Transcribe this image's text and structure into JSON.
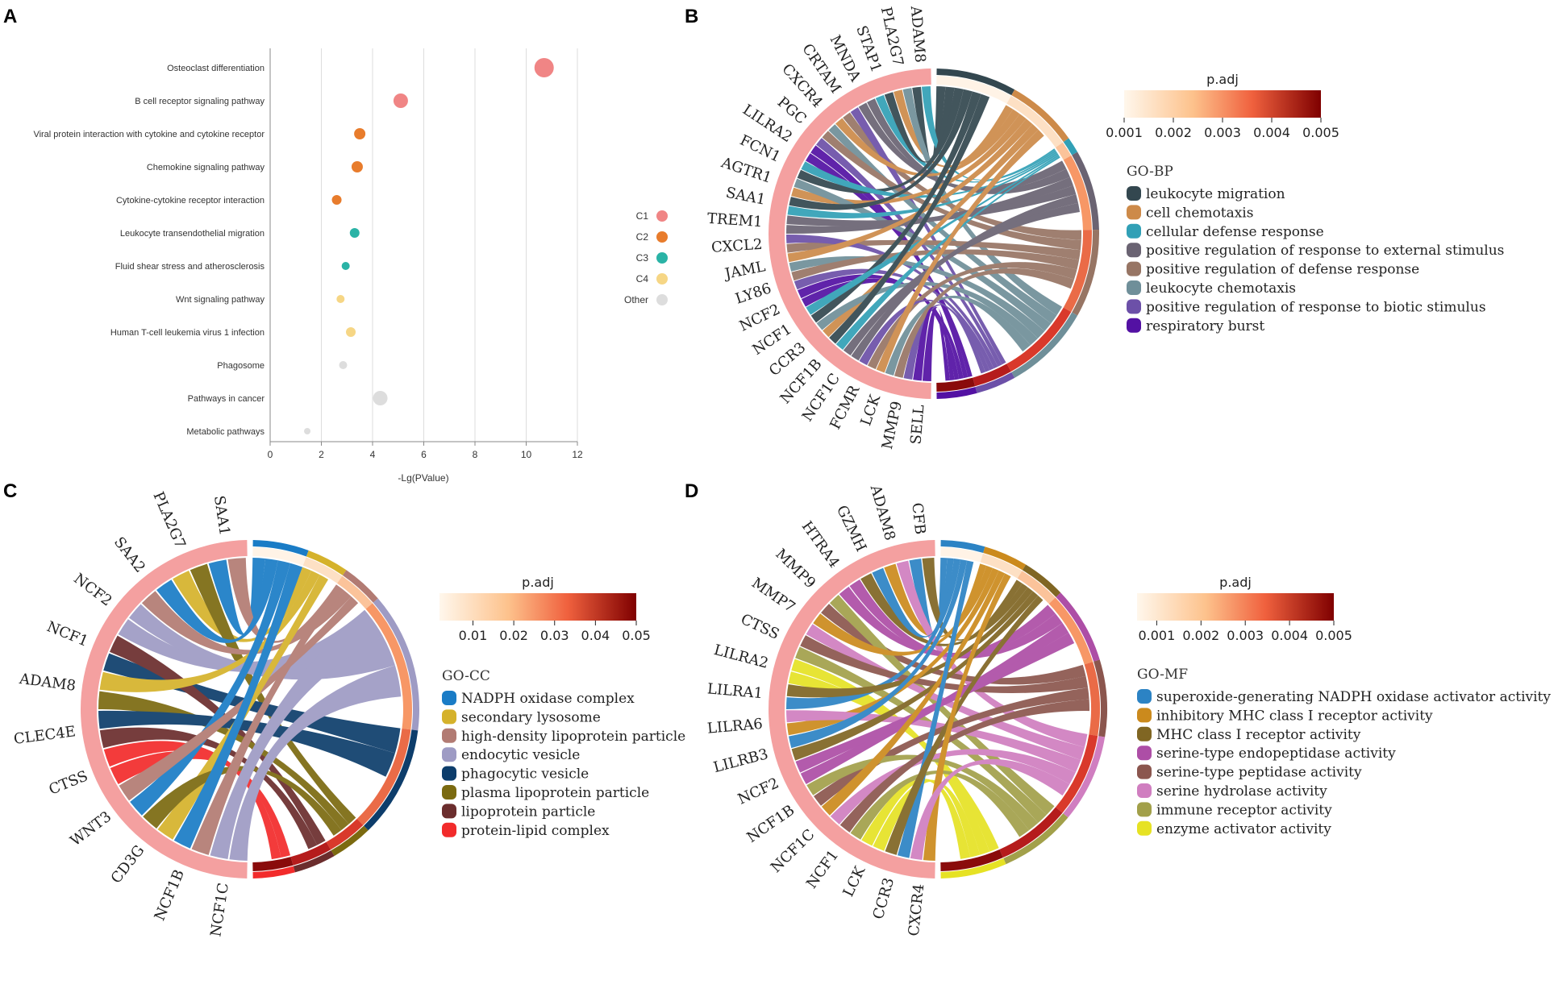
{
  "panels": {
    "A": {
      "letter": "A"
    },
    "B": {
      "letter": "B"
    },
    "C": {
      "letter": "C"
    },
    "D": {
      "letter": "D"
    }
  },
  "chart_data": [
    {
      "id": "A",
      "type": "scatter",
      "title": "",
      "xlabel": "-Lg(PValue)",
      "ylabel": "",
      "xlim": [
        0,
        12
      ],
      "xticks": [
        "0",
        "2",
        "4",
        "6",
        "8",
        "10",
        "12"
      ],
      "grid": true,
      "categories": [
        "Osteoclast differentiation",
        "B cell receptor signaling pathway",
        "Viral protein interaction with cytokine and cytokine receptor",
        "Chemokine signaling pathway",
        "Cytokine-cytokine receptor interaction",
        "Leukocyte transendothelial migration",
        "Fluid shear stress and atherosclerosis",
        "Wnt signaling pathway",
        "Human T-cell leukemia virus 1 infection",
        "Phagosome",
        "Pathways in cancer",
        "Metabolic pathways"
      ],
      "values": [
        10.7,
        5.1,
        3.5,
        3.4,
        2.6,
        3.3,
        2.95,
        2.75,
        3.15,
        2.85,
        4.3,
        1.45
      ],
      "size_rank": [
        12,
        9,
        7,
        7,
        6,
        6,
        5,
        5,
        6,
        5,
        9,
        4
      ],
      "groups": [
        "C1",
        "C1",
        "C2",
        "C2",
        "C2",
        "C3",
        "C3",
        "C4",
        "C4",
        "Other",
        "Other",
        "Other"
      ],
      "legend": [
        {
          "label": "C1",
          "color": "#f08585"
        },
        {
          "label": "C2",
          "color": "#e87c2c"
        },
        {
          "label": "C3",
          "color": "#2ab3a6"
        },
        {
          "label": "C4",
          "color": "#f6d685"
        },
        {
          "label": "Other",
          "color": "#dddddd"
        }
      ]
    },
    {
      "id": "B",
      "type": "chord",
      "genes": [
        "ADAM8",
        "PLA2G7",
        "STAP1",
        "MNDA",
        "CRTAM",
        "CXCR4",
        "PGC",
        "LILRA2",
        "FCN1",
        "AGTR1",
        "SAA1",
        "TREM1",
        "CXCL2",
        "JAML",
        "LY86",
        "NCF2",
        "NCF1",
        "CCR3",
        "NCF1B",
        "NCF1C",
        "FCMR",
        "LCK",
        "MMP9",
        "SELL"
      ],
      "colorbar": {
        "title": "p.adj",
        "ticks": [
          "0.001",
          "0.002",
          "0.003",
          "0.004",
          "0.005"
        ]
      },
      "legend_title": "GO-BP",
      "terms": [
        {
          "label": "leukocyte migration",
          "color": "#33474f"
        },
        {
          "label": "cell chemotaxis",
          "color": "#cd8a49"
        },
        {
          "label": "cellular defense response",
          "color": "#31a0b6"
        },
        {
          "label": "positive regulation of response to external stimulus",
          "color": "#6a6372"
        },
        {
          "label": "positive regulation of defense response",
          "color": "#977564"
        },
        {
          "label": "leukocyte chemotaxis",
          "color": "#6f8f99"
        },
        {
          "label": "positive regulation of response to biotic stimulus",
          "color": "#6c50a8"
        },
        {
          "label": "respiratory burst",
          "color": "#5311a3"
        }
      ],
      "term_sizes": [
        10,
        9,
        2,
        10,
        11,
        11,
        5,
        5
      ]
    },
    {
      "id": "C",
      "type": "chord",
      "genes": [
        "SAA1",
        "PLA2G7",
        "SAA2",
        "NCF2",
        "NCF1",
        "ADAM8",
        "CLEC4E",
        "CTSS",
        "WNT3",
        "CD3G",
        "NCF1B",
        "NCF1C"
      ],
      "colorbar": {
        "title": "p.adj",
        "ticks": [
          "0.01",
          "0.02",
          "0.03",
          "0.04",
          "0.05"
        ]
      },
      "legend_title": "GO-CC",
      "terms": [
        {
          "label": "NADPH oxidase complex",
          "color": "#1a7cc6"
        },
        {
          "label": "secondary lysosome",
          "color": "#d5b22b"
        },
        {
          "label": "high-density lipoprotein particle",
          "color": "#b27b73"
        },
        {
          "label": "endocytic vesicle",
          "color": "#9e9bc4"
        },
        {
          "label": "phagocytic vesicle",
          "color": "#0d3d6b"
        },
        {
          "label": "plasma lipoprotein particle",
          "color": "#7b6a10"
        },
        {
          "label": "lipoprotein particle",
          "color": "#6b2d2d"
        },
        {
          "label": "protein-lipid complex",
          "color": "#f22b2b"
        }
      ],
      "term_sizes": [
        4,
        3,
        3,
        10,
        8,
        3,
        3,
        3
      ]
    },
    {
      "id": "D",
      "type": "chord",
      "genes": [
        "CFB",
        "ADAM8",
        "GZMH",
        "HTRA4",
        "MMP9",
        "MMP7",
        "CTSS",
        "LILRA2",
        "LILRA1",
        "LILRA6",
        "LILRB3",
        "NCF2",
        "NCF1B",
        "NCF1C",
        "NCF1",
        "LCK",
        "CCR3",
        "CXCR4"
      ],
      "colorbar": {
        "title": "p.adj",
        "ticks": [
          "0.001",
          "0.002",
          "0.003",
          "0.004",
          "0.005"
        ]
      },
      "legend_title": "GO-MF",
      "terms": [
        {
          "label": "superoxide-generating NADPH oxidase activator activity",
          "color": "#2c83c4"
        },
        {
          "label": "inhibitory MHC class I receptor activity",
          "color": "#cb8a1d"
        },
        {
          "label": "MHC class I receptor activity",
          "color": "#806623"
        },
        {
          "label": "serine-type endopeptidase activity",
          "color": "#ad4ea6"
        },
        {
          "label": "serine-type peptidase activity",
          "color": "#8b564e"
        },
        {
          "label": "serine hydrolase activity",
          "color": "#d07ec0"
        },
        {
          "label": "immune receptor activity",
          "color": "#a2a04a"
        },
        {
          "label": "enzyme activator activity",
          "color": "#e6e224"
        }
      ],
      "term_sizes": [
        4,
        4,
        4,
        7,
        7,
        8,
        7,
        6
      ]
    }
  ]
}
